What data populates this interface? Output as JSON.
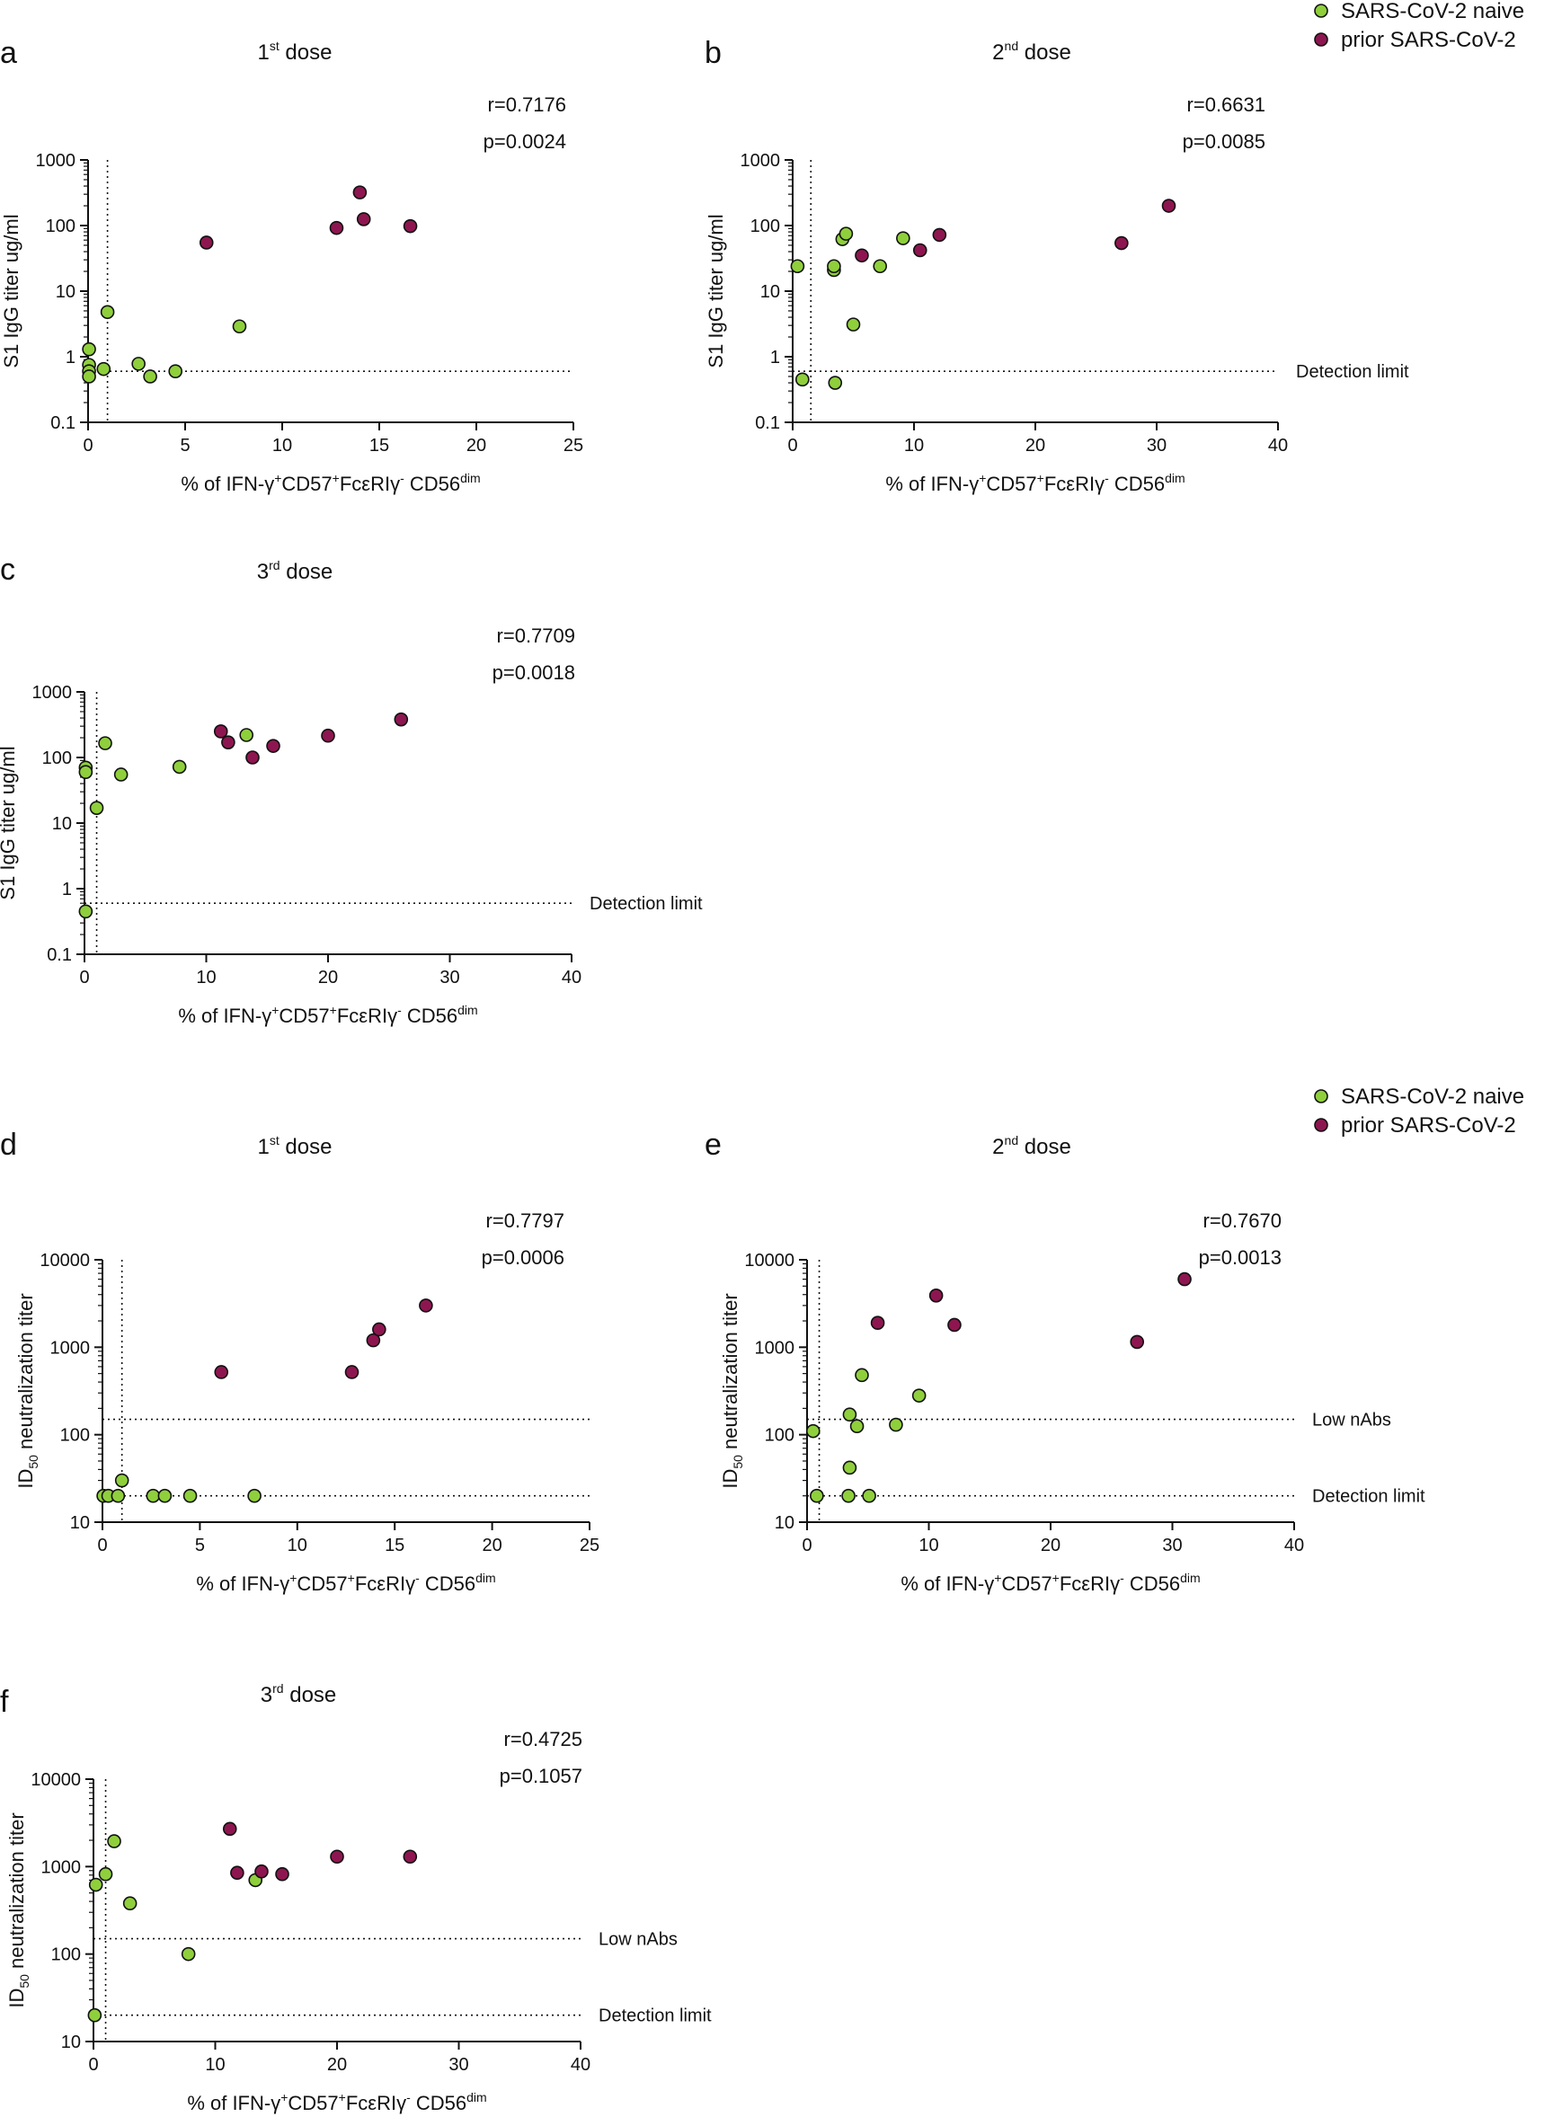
{
  "figure": {
    "legends": [
      {
        "items": [
          {
            "label": "SARS-CoV-2 naive",
            "color": "#8fcf3c"
          },
          {
            "label": "prior SARS-CoV-2",
            "color": "#8e1650"
          }
        ]
      },
      {
        "items": [
          {
            "label": "SARS-CoV-2 naive",
            "color": "#8fcf3c"
          },
          {
            "label": "prior SARS-CoV-2",
            "color": "#8e1650"
          }
        ]
      }
    ]
  },
  "chart_data": [
    {
      "type": "scatter",
      "panel": "a",
      "title": {
        "base": "1",
        "sup": "st",
        "rest": " dose"
      },
      "r": "r=0.7176",
      "p": "p=0.0024",
      "ylabel": "S1 IgG titer ug/ml",
      "xlabel": {
        "a": "% of IFN-γ",
        "b": "+",
        "c": "CD57",
        "d": "+",
        "e": "FcεRIγ",
        "f": "-",
        "g": " CD56",
        "h": "dim"
      },
      "yscale": "log",
      "ylim": [
        0.1,
        1000
      ],
      "yticks": [
        0.1,
        1,
        10,
        100,
        1000
      ],
      "ytick_labels": [
        "0.1",
        "1",
        "10",
        "100",
        "1000"
      ],
      "xlim": [
        0,
        25
      ],
      "xticks": [
        0,
        5,
        10,
        15,
        20,
        25
      ],
      "xtick_labels": [
        "0",
        "5",
        "10",
        "15",
        "20",
        "25"
      ],
      "vline": 1.0,
      "hlines": [
        {
          "y": 0.6,
          "label": ""
        }
      ],
      "series": [
        {
          "name": "SARS-CoV-2 naive",
          "color": "#8fcf3c",
          "points": [
            [
              0.05,
              1.3
            ],
            [
              0.05,
              0.75
            ],
            [
              0.05,
              0.6
            ],
            [
              0.05,
              0.5
            ],
            [
              0.8,
              0.65
            ],
            [
              1.0,
              4.8
            ],
            [
              2.6,
              0.78
            ],
            [
              3.2,
              0.5
            ],
            [
              4.5,
              0.6
            ],
            [
              7.8,
              2.9
            ]
          ]
        },
        {
          "name": "prior SARS-CoV-2",
          "color": "#8e1650",
          "points": [
            [
              6.1,
              55
            ],
            [
              12.8,
              92
            ],
            [
              14.0,
              320
            ],
            [
              14.2,
              125
            ],
            [
              16.6,
              98
            ]
          ]
        }
      ]
    },
    {
      "type": "scatter",
      "panel": "b",
      "title": {
        "base": "2",
        "sup": "nd",
        "rest": " dose"
      },
      "r": "r=0.6631",
      "p": "p=0.0085",
      "ylabel": "S1 IgG titer ug/ml",
      "xlabel": {
        "a": "% of IFN-γ",
        "b": "+",
        "c": "CD57",
        "d": "+",
        "e": "FcεRIγ",
        "f": "-",
        "g": " CD56",
        "h": "dim"
      },
      "yscale": "log",
      "ylim": [
        0.1,
        1000
      ],
      "yticks": [
        0.1,
        1,
        10,
        100,
        1000
      ],
      "ytick_labels": [
        "0.1",
        "1",
        "10",
        "100",
        "1000"
      ],
      "xlim": [
        0,
        40
      ],
      "xticks": [
        0,
        10,
        20,
        30,
        40
      ],
      "xtick_labels": [
        "0",
        "10",
        "20",
        "30",
        "40"
      ],
      "vline": 1.5,
      "hlines": [
        {
          "y": 0.6,
          "label": "Detection limit"
        }
      ],
      "series": [
        {
          "name": "SARS-CoV-2 naive",
          "color": "#8fcf3c",
          "points": [
            [
              0.4,
              24
            ],
            [
              0.8,
              0.45
            ],
            [
              3.4,
              21
            ],
            [
              3.4,
              24
            ],
            [
              3.5,
              0.4
            ],
            [
              4.1,
              62
            ],
            [
              4.4,
              75
            ],
            [
              5.0,
              3.1
            ],
            [
              7.2,
              24
            ],
            [
              9.1,
              64
            ]
          ]
        },
        {
          "name": "prior SARS-CoV-2",
          "color": "#8e1650",
          "points": [
            [
              5.7,
              35
            ],
            [
              10.5,
              42
            ],
            [
              12.1,
              72
            ],
            [
              27.1,
              54
            ],
            [
              31.0,
              200
            ]
          ]
        }
      ]
    },
    {
      "type": "scatter",
      "panel": "c",
      "title": {
        "base": "3",
        "sup": "rd",
        "rest": " dose"
      },
      "r": "r=0.7709",
      "p": "p=0.0018",
      "ylabel": "S1 IgG titer ug/ml",
      "xlabel": {
        "a": "% of IFN-γ",
        "b": "+",
        "c": "CD57",
        "d": "+",
        "e": "FcεRIγ",
        "f": "-",
        "g": " CD56",
        "h": "dim"
      },
      "yscale": "log",
      "ylim": [
        0.1,
        1000
      ],
      "yticks": [
        0.1,
        1,
        10,
        100,
        1000
      ],
      "ytick_labels": [
        "0.1",
        "1",
        "10",
        "100",
        "1000"
      ],
      "xlim": [
        0,
        40
      ],
      "xticks": [
        0,
        10,
        20,
        30,
        40
      ],
      "xtick_labels": [
        "0",
        "10",
        "20",
        "30",
        "40"
      ],
      "vline": 1.0,
      "hlines": [
        {
          "y": 0.6,
          "label": "Detection limit"
        }
      ],
      "series": [
        {
          "name": "SARS-CoV-2 naive",
          "color": "#8fcf3c",
          "points": [
            [
              0.1,
              70
            ],
            [
              0.1,
              60
            ],
            [
              0.1,
              0.45
            ],
            [
              1.0,
              17
            ],
            [
              1.7,
              165
            ],
            [
              3.0,
              55
            ],
            [
              7.8,
              72
            ],
            [
              13.3,
              220
            ]
          ]
        },
        {
          "name": "prior SARS-CoV-2",
          "color": "#8e1650",
          "points": [
            [
              11.2,
              250
            ],
            [
              11.8,
              170
            ],
            [
              13.8,
              100
            ],
            [
              15.5,
              150
            ],
            [
              20.0,
              215
            ],
            [
              26.0,
              380
            ]
          ]
        }
      ]
    },
    {
      "type": "scatter",
      "panel": "d",
      "title": {
        "base": "1",
        "sup": "st",
        "rest": " dose"
      },
      "r": "r=0.7797",
      "p": "p=0.0006",
      "ylabel": {
        "a": "ID",
        "b": "50",
        "c": " neutralization titer"
      },
      "xlabel": {
        "a": "% of IFN-γ",
        "b": "+",
        "c": "CD57",
        "d": "+",
        "e": "FcεRIγ",
        "f": "-",
        "g": " CD56",
        "h": "dim"
      },
      "yscale": "log",
      "ylim": [
        10,
        10000
      ],
      "yticks": [
        10,
        100,
        1000,
        10000
      ],
      "ytick_labels": [
        "10",
        "100",
        "1000",
        "10000"
      ],
      "xlim": [
        0,
        25
      ],
      "xticks": [
        0,
        5,
        10,
        15,
        20,
        25
      ],
      "xtick_labels": [
        "0",
        "5",
        "10",
        "15",
        "20",
        "25"
      ],
      "vline": 1.0,
      "hlines": [
        {
          "y": 150,
          "label": ""
        },
        {
          "y": 20,
          "label": ""
        }
      ],
      "series": [
        {
          "name": "SARS-CoV-2 naive",
          "color": "#8fcf3c",
          "points": [
            [
              0.05,
              20
            ],
            [
              0.3,
              20
            ],
            [
              0.8,
              20
            ],
            [
              1.0,
              30
            ],
            [
              2.6,
              20
            ],
            [
              3.2,
              20
            ],
            [
              4.5,
              20
            ],
            [
              7.8,
              20
            ]
          ]
        },
        {
          "name": "prior SARS-CoV-2",
          "color": "#8e1650",
          "points": [
            [
              6.1,
              520
            ],
            [
              12.8,
              520
            ],
            [
              13.9,
              1200
            ],
            [
              14.2,
              1600
            ],
            [
              16.6,
              3000
            ]
          ]
        }
      ]
    },
    {
      "type": "scatter",
      "panel": "e",
      "title": {
        "base": "2",
        "sup": "nd",
        "rest": " dose"
      },
      "r": "r=0.7670",
      "p": "p=0.0013",
      "ylabel": {
        "a": "ID",
        "b": "50",
        "c": " neutralization titer"
      },
      "xlabel": {
        "a": "% of IFN-γ",
        "b": "+",
        "c": "CD57",
        "d": "+",
        "e": "FcεRIγ",
        "f": "-",
        "g": " CD56",
        "h": "dim"
      },
      "yscale": "log",
      "ylim": [
        10,
        10000
      ],
      "yticks": [
        10,
        100,
        1000,
        10000
      ],
      "ytick_labels": [
        "10",
        "100",
        "1000",
        "10000"
      ],
      "xlim": [
        0,
        40
      ],
      "xticks": [
        0,
        10,
        20,
        30,
        40
      ],
      "xtick_labels": [
        "0",
        "10",
        "20",
        "30",
        "40"
      ],
      "vline": 1.0,
      "hlines": [
        {
          "y": 150,
          "label": "Low nAbs"
        },
        {
          "y": 20,
          "label": "Detection limit"
        }
      ],
      "series": [
        {
          "name": "SARS-CoV-2 naive",
          "color": "#8fcf3c",
          "points": [
            [
              0.5,
              110
            ],
            [
              0.8,
              20
            ],
            [
              3.4,
              20
            ],
            [
              3.5,
              42
            ],
            [
              3.5,
              170
            ],
            [
              4.1,
              125
            ],
            [
              4.5,
              480
            ],
            [
              5.1,
              20
            ],
            [
              7.3,
              130
            ],
            [
              9.2,
              280
            ]
          ]
        },
        {
          "name": "prior SARS-CoV-2",
          "color": "#8e1650",
          "points": [
            [
              5.8,
              1900
            ],
            [
              10.6,
              3900
            ],
            [
              12.1,
              1800
            ],
            [
              27.1,
              1150
            ],
            [
              31.0,
              6000
            ]
          ]
        }
      ]
    },
    {
      "type": "scatter",
      "panel": "f",
      "title": {
        "base": "3",
        "sup": "rd",
        "rest": " dose"
      },
      "r": "r=0.4725",
      "p": "p=0.1057",
      "ylabel": {
        "a": "ID",
        "b": "50",
        "c": " neutralization titer"
      },
      "xlabel": {
        "a": "% of IFN-γ",
        "b": "+",
        "c": "CD57",
        "d": "+",
        "e": "FcεRIγ",
        "f": "-",
        "g": " CD56",
        "h": "dim"
      },
      "yscale": "log",
      "ylim": [
        10,
        10000
      ],
      "yticks": [
        10,
        100,
        1000,
        10000
      ],
      "ytick_labels": [
        "10",
        "100",
        "1000",
        "10000"
      ],
      "xlim": [
        0,
        40
      ],
      "xticks": [
        0,
        10,
        20,
        30,
        40
      ],
      "xtick_labels": [
        "0",
        "10",
        "20",
        "30",
        "40"
      ],
      "vline": 1.0,
      "hlines": [
        {
          "y": 150,
          "label": "Low nAbs"
        },
        {
          "y": 20,
          "label": "Detection limit"
        }
      ],
      "series": [
        {
          "name": "SARS-CoV-2 naive",
          "color": "#8fcf3c",
          "points": [
            [
              0.1,
              20
            ],
            [
              0.2,
              620
            ],
            [
              1.0,
              820
            ],
            [
              1.7,
              1950
            ],
            [
              3.0,
              380
            ],
            [
              7.8,
              100
            ],
            [
              13.3,
              700
            ]
          ]
        },
        {
          "name": "prior SARS-CoV-2",
          "color": "#8e1650",
          "points": [
            [
              11.2,
              2700
            ],
            [
              11.8,
              850
            ],
            [
              13.8,
              880
            ],
            [
              15.5,
              820
            ],
            [
              20.0,
              1300
            ],
            [
              26.0,
              1300
            ]
          ]
        }
      ]
    }
  ]
}
